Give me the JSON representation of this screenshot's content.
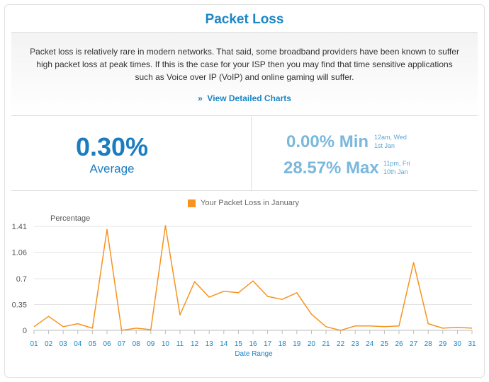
{
  "header": {
    "title": "Packet Loss"
  },
  "description": {
    "text": "Packet loss is relatively rare in modern networks. That said, some broadband providers have been known to suffer high packet loss at peak times. If this is the case for your ISP then you may find that time sensitive applications such as Voice over IP (VoIP) and online gaming will suffer.",
    "link_prefix": "»",
    "link_label": "View Detailed Charts"
  },
  "stats": {
    "average_value": "0.30%",
    "average_label": "Average",
    "min_value": "0.00% Min",
    "min_time_line1": "12am, Wed",
    "min_time_line2": "1st Jan",
    "max_value": "28.57% Max",
    "max_time_line1": "11pm, Fri",
    "max_time_line2": "10th Jan"
  },
  "colors": {
    "accent": "#1a86c7",
    "series": "#f7931e"
  },
  "chart_data": {
    "type": "line",
    "legend": "Your Packet Loss in January",
    "ylabel": "Percentage",
    "xlabel": "Date Range",
    "ylim": [
      0,
      1.41
    ],
    "yticks": [
      "0",
      "0.35",
      "0.7",
      "1.06",
      "1.41"
    ],
    "ytick_values": [
      0,
      0.35,
      0.7,
      1.06,
      1.41
    ],
    "categories": [
      "01",
      "02",
      "03",
      "04",
      "05",
      "06",
      "07",
      "08",
      "09",
      "10",
      "11",
      "12",
      "13",
      "14",
      "15",
      "16",
      "17",
      "18",
      "19",
      "20",
      "21",
      "22",
      "23",
      "24",
      "25",
      "26",
      "27",
      "28",
      "29",
      "30",
      "31"
    ],
    "series": [
      {
        "name": "Your Packet Loss in January",
        "values": [
          0.05,
          0.19,
          0.05,
          0.09,
          0.03,
          1.37,
          0.0,
          0.03,
          0.01,
          1.42,
          0.21,
          0.66,
          0.45,
          0.53,
          0.51,
          0.67,
          0.46,
          0.42,
          0.51,
          0.22,
          0.05,
          0.0,
          0.06,
          0.06,
          0.05,
          0.06,
          0.92,
          0.09,
          0.03,
          0.04,
          0.03
        ]
      }
    ],
    "grid": "horizontal"
  }
}
